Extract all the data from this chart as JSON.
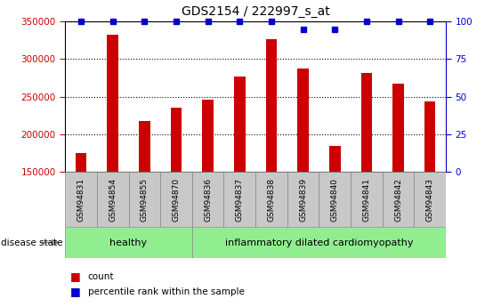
{
  "title": "GDS2154 / 222997_s_at",
  "samples": [
    "GSM94831",
    "GSM94854",
    "GSM94855",
    "GSM94870",
    "GSM94836",
    "GSM94837",
    "GSM94838",
    "GSM94839",
    "GSM94840",
    "GSM94841",
    "GSM94842",
    "GSM94843"
  ],
  "counts": [
    175000,
    332000,
    218000,
    235000,
    246000,
    277000,
    326000,
    287000,
    185000,
    281000,
    267000,
    244000
  ],
  "percentile_ranks": [
    100,
    100,
    100,
    100,
    100,
    100,
    100,
    95,
    95,
    100,
    100,
    100
  ],
  "bar_color": "#CC0000",
  "percentile_color": "#0000CC",
  "bar_width": 0.35,
  "ylim_left": [
    150000,
    350000
  ],
  "ylim_right": [
    0,
    100
  ],
  "yticks_left": [
    150000,
    200000,
    250000,
    300000,
    350000
  ],
  "yticks_right": [
    0,
    25,
    50,
    75,
    100
  ],
  "background_color": "#ffffff",
  "grid_color": "#000000",
  "tick_area_color": "#c8c8c8",
  "healthy_count": 4,
  "disease_state_label": "disease state",
  "legend_count_label": "count",
  "legend_percentile_label": "percentile rank within the sample",
  "group_label_healthy": "healthy",
  "group_label_disease": "inflammatory dilated cardiomyopathy",
  "group_color_healthy": "#90EE90",
  "group_color_disease": "#90EE90"
}
